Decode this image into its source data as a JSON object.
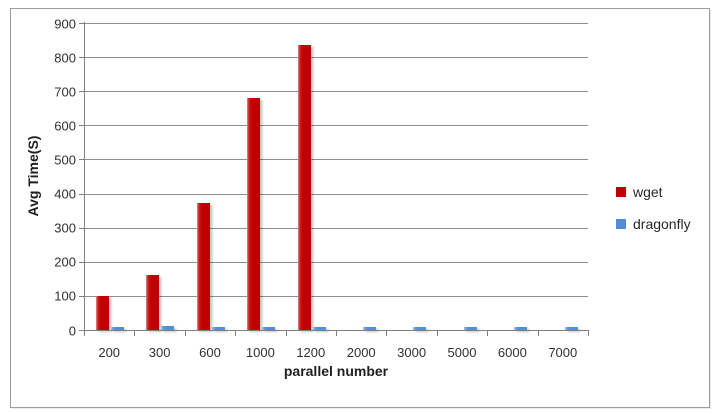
{
  "chart_data": {
    "type": "bar",
    "title": "",
    "xlabel": "parallel number",
    "ylabel": "Avg Time(S)",
    "ylim": [
      0,
      900
    ],
    "ytick_step": 100,
    "grid": true,
    "legend_position": "right",
    "categories": [
      "200",
      "300",
      "600",
      "1000",
      "1200",
      "2000",
      "3000",
      "5000",
      "6000",
      "7000"
    ],
    "series": [
      {
        "name": "wget",
        "color": "#C00000",
        "values": [
          100,
          162,
          372,
          680,
          835,
          0,
          0,
          0,
          0,
          0
        ]
      },
      {
        "name": "dragonfly",
        "color": "#538DD5",
        "values": [
          9,
          13,
          10,
          10,
          10,
          9,
          10,
          10,
          10,
          10
        ]
      }
    ]
  },
  "colors": {
    "wget": "#C00000",
    "dragonfly": "#538DD5",
    "gridline": "#8E8E8E",
    "axis": "#7F7F7F",
    "frame_border": "#9B9B9B"
  }
}
